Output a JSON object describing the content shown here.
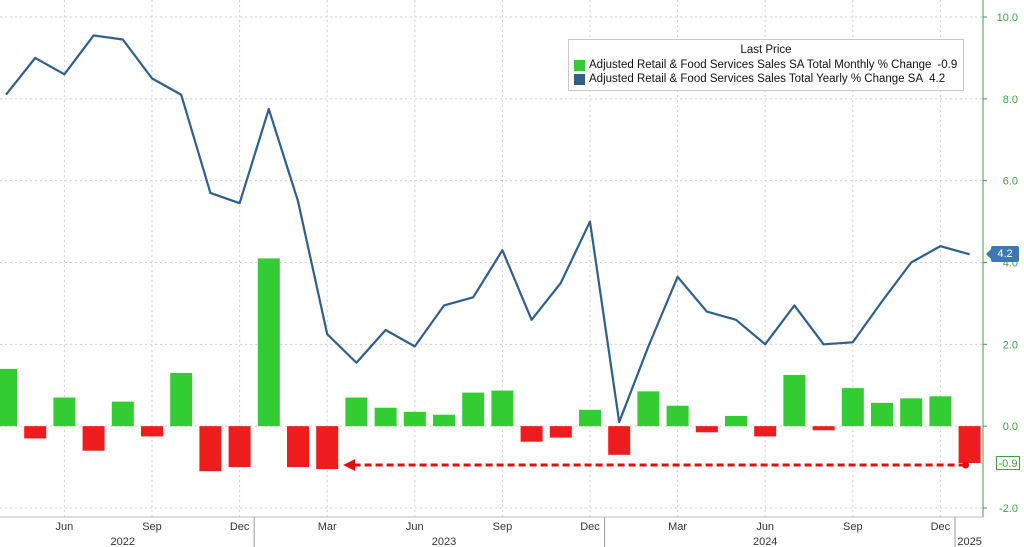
{
  "chart_data": {
    "type": "bar+line",
    "legend": {
      "title": "Last Price",
      "placement": "top-right",
      "entries": [
        {
          "label": "Adjusted Retail & Food Services Sales SA Total Monthly % Change",
          "value": "-0.9",
          "color": "#33cc33"
        },
        {
          "label": "Adjusted Retail & Food Services Sales Total Yearly % Change SA",
          "value": "4.2",
          "color": "#2f5f8f"
        }
      ]
    },
    "x": [
      "2022-04",
      "2022-05",
      "2022-06",
      "2022-07",
      "2022-08",
      "2022-09",
      "2022-10",
      "2022-11",
      "2022-12",
      "2023-01",
      "2023-02",
      "2023-03",
      "2023-04",
      "2023-05",
      "2023-06",
      "2023-07",
      "2023-08",
      "2023-09",
      "2023-10",
      "2023-11",
      "2023-12",
      "2024-01",
      "2024-02",
      "2024-03",
      "2024-04",
      "2024-05",
      "2024-06",
      "2024-07",
      "2024-08",
      "2024-09",
      "2024-10",
      "2024-11",
      "2024-12",
      "2025-01"
    ],
    "series": [
      {
        "name": "Adjusted Retail & Food Services Sales SA Total Monthly % Change",
        "type": "bar",
        "values": [
          1.4,
          -0.3,
          0.7,
          -0.6,
          0.6,
          -0.25,
          1.3,
          -1.1,
          -1.0,
          4.1,
          -1.0,
          -1.05,
          0.7,
          0.45,
          0.35,
          0.28,
          0.82,
          0.87,
          -0.38,
          -0.28,
          0.4,
          -0.7,
          0.85,
          0.5,
          -0.15,
          0.25,
          -0.25,
          1.25,
          -0.1,
          0.93,
          0.57,
          0.68,
          0.73,
          -0.9
        ]
      },
      {
        "name": "Adjusted Retail & Food Services Sales Total Yearly % Change SA",
        "type": "line",
        "color": "#2f5f8f",
        "values": [
          8.1,
          9.0,
          8.6,
          9.55,
          9.45,
          8.5,
          8.1,
          5.7,
          5.45,
          7.75,
          5.5,
          2.25,
          1.55,
          2.35,
          1.95,
          2.95,
          3.15,
          4.3,
          2.6,
          3.5,
          5.0,
          0.1,
          1.95,
          3.65,
          2.8,
          2.6,
          2.0,
          2.95,
          2.0,
          2.05,
          3.05,
          4.0,
          4.4,
          4.2
        ]
      }
    ],
    "y_ticks": [
      "10.0",
      "8.0",
      "6.0",
      "4.0",
      "2.0",
      "0.0",
      "-2.0"
    ],
    "ylim": [
      -2.0,
      10.0
    ],
    "x_month_ticks": [
      {
        "label": "Jun",
        "x": "2022-06"
      },
      {
        "label": "Sep",
        "x": "2022-09"
      },
      {
        "label": "Dec",
        "x": "2022-12"
      },
      {
        "label": "Mar",
        "x": "2023-03"
      },
      {
        "label": "Jun",
        "x": "2023-06"
      },
      {
        "label": "Sep",
        "x": "2023-09"
      },
      {
        "label": "Dec",
        "x": "2023-12"
      },
      {
        "label": "Mar",
        "x": "2024-03"
      },
      {
        "label": "Jun",
        "x": "2024-06"
      },
      {
        "label": "Sep",
        "x": "2024-09"
      },
      {
        "label": "Dec",
        "x": "2024-12"
      }
    ],
    "x_year_labels": [
      {
        "label": "2022",
        "x": "2022-08"
      },
      {
        "label": "2023",
        "x": "2023-07"
      },
      {
        "label": "2024",
        "x": "2024-06"
      },
      {
        "label": "2025",
        "x": "2025-01"
      }
    ],
    "last_value_badge": "4.2",
    "last_bar_badge": "-0.9",
    "annotation": {
      "type": "dashed-arrow",
      "from": "2025-01",
      "to": "2023-03",
      "value": -0.9,
      "color": "#e01010"
    },
    "grid": true,
    "colors": {
      "positive_bar": "#33cc33",
      "negative_bar": "#ee1c1c",
      "line": "#2f5f8f",
      "axis_text": "#3aa540"
    }
  }
}
